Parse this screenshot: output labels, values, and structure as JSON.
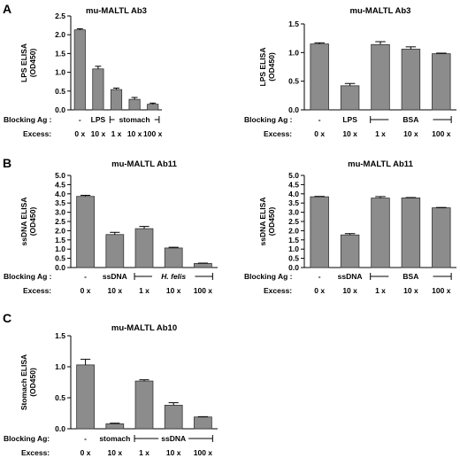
{
  "panel_letters": [
    "A",
    "B",
    "C"
  ],
  "row_labels": {
    "blocking": "Blocking Ag :",
    "blocking_c": "Blocking Ag:",
    "excess": "Excess:"
  },
  "chart_data": [
    {
      "type": "bar",
      "panel": "A",
      "title": "mu-MALTL Ab3",
      "ylabel": [
        "LPS ELISA",
        "(OD450)"
      ],
      "ylim": [
        0,
        2.5
      ],
      "yticks": [
        "0.0",
        "0.5",
        "1.0",
        "1.5",
        "2.0",
        "2.5"
      ],
      "categories": [
        "0 x",
        "10 x",
        "1 x",
        "10 x",
        "100 x"
      ],
      "values": [
        2.13,
        1.09,
        0.54,
        0.28,
        0.15
      ],
      "errors": [
        0.03,
        0.07,
        0.04,
        0.05,
        0.03
      ],
      "blocking": {
        "singles": [
          "-",
          "LPS"
        ],
        "bracket": "stomach",
        "italic": false,
        "bracket_style": "full"
      },
      "excess_labels": [
        "0 x",
        "10 x",
        "1 x",
        "10 x",
        "100 x"
      ]
    },
    {
      "type": "bar",
      "panel": "A",
      "title": "mu-MALTL Ab3",
      "ylabel": [
        "LPS ELISA",
        "(OD450)"
      ],
      "ylim": [
        0,
        1.5
      ],
      "yticks": [
        "0.0",
        "0.5",
        "1.0",
        "1.5"
      ],
      "categories": [
        "0 x",
        "10 x",
        "1 x",
        "10 x",
        "100 x"
      ],
      "values": [
        1.15,
        0.42,
        1.14,
        1.06,
        0.98
      ],
      "errors": [
        0.02,
        0.04,
        0.05,
        0.04,
        0.01
      ],
      "blocking": {
        "singles": [
          "-",
          "LPS"
        ],
        "bracket": "BSA",
        "italic": false,
        "bracket_style": "split"
      },
      "excess_labels": [
        "0 x",
        "10 x",
        "1 x",
        "10 x",
        "100 x"
      ]
    },
    {
      "type": "bar",
      "panel": "B",
      "title": "mu-MALTL Ab11",
      "ylabel": [
        "ssDNA ELISA",
        "(OD450)"
      ],
      "ylim": [
        0,
        5.0
      ],
      "yticks": [
        "0.0",
        "0.5",
        "1.0",
        "1.5",
        "2.0",
        "2.5",
        "3.0",
        "3.5",
        "4.0",
        "4.5",
        "5.0"
      ],
      "categories": [
        "0 x",
        "10 x",
        "1 x",
        "10 x",
        "100 x"
      ],
      "values": [
        3.86,
        1.79,
        2.11,
        1.06,
        0.22
      ],
      "errors": [
        0.06,
        0.12,
        0.12,
        0.04,
        0.02
      ],
      "blocking": {
        "singles": [
          "-",
          "ssDNA"
        ],
        "bracket": "H. felis",
        "italic": true,
        "bracket_style": "split"
      },
      "excess_labels": [
        "0 x",
        "10 x",
        "1 x",
        "10 x",
        "100 x"
      ]
    },
    {
      "type": "bar",
      "panel": "B",
      "title": "mu-MALTL Ab11",
      "ylabel": [
        "ssDNA ELISA",
        "(OD450)"
      ],
      "ylim": [
        0,
        5.0
      ],
      "yticks": [
        "0.0",
        "0.5",
        "1.0",
        "1.5",
        "2.0",
        "2.5",
        "3.0",
        "3.5",
        "4.0",
        "4.5",
        "5.0"
      ],
      "categories": [
        "0 x",
        "10 x",
        "1 x",
        "10 x",
        "100 x"
      ],
      "values": [
        3.84,
        1.77,
        3.77,
        3.78,
        3.24
      ],
      "errors": [
        0.02,
        0.07,
        0.08,
        0.02,
        0.02
      ],
      "blocking": {
        "singles": [
          "-",
          "ssDNA"
        ],
        "bracket": "BSA",
        "italic": false,
        "bracket_style": "split"
      },
      "excess_labels": [
        "0 x",
        "10 x",
        "1 x",
        "10 x",
        "100 x"
      ]
    },
    {
      "type": "bar",
      "panel": "C",
      "title": "mu-MALTL Ab10",
      "ylabel": [
        "Stomach ELISA",
        "(OD450)"
      ],
      "ylim": [
        0,
        1.5
      ],
      "yticks": [
        "0.0",
        "0.5",
        "1.0",
        "1.5"
      ],
      "categories": [
        "0 x",
        "10 x",
        "1 x",
        "10 x",
        "100 x"
      ],
      "values": [
        1.03,
        0.08,
        0.77,
        0.38,
        0.19
      ],
      "errors": [
        0.09,
        0.01,
        0.02,
        0.04,
        0.005
      ],
      "blocking": {
        "singles": [
          "-",
          "stomach"
        ],
        "bracket": "ssDNA",
        "italic": false,
        "bracket_style": "full"
      },
      "excess_labels": [
        "0 x",
        "10 x",
        "1 x",
        "10 x",
        "100 x"
      ]
    }
  ]
}
